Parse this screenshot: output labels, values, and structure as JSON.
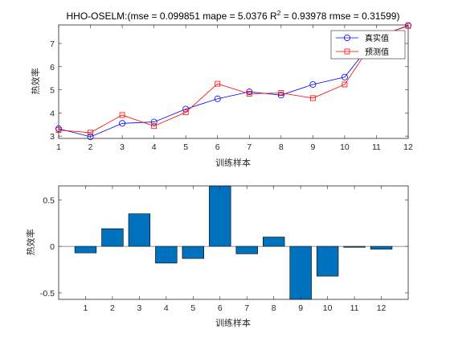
{
  "chart_data": [
    {
      "type": "line",
      "title_main": "HHO-OSELM:(mse = 0.099851 mape = 5.0376  R",
      "title_sup": "2",
      "title_rest": " = 0.93978 rmse = 0.31599)",
      "xlabel": "训练样本",
      "ylabel": "热效率",
      "x": [
        1,
        2,
        3,
        4,
        5,
        6,
        7,
        8,
        9,
        10,
        11,
        12
      ],
      "xlim": [
        1,
        12
      ],
      "ylim": [
        2.9,
        7.8
      ],
      "yticks": [
        3,
        4,
        5,
        6,
        7
      ],
      "grid": false,
      "legend_position": "top-right",
      "series": [
        {
          "name": "真实值",
          "marker": "circle",
          "color": "#0000FF",
          "values": [
            3.32,
            2.97,
            3.55,
            3.61,
            4.17,
            4.61,
            4.91,
            4.77,
            5.23,
            5.55,
            7.27,
            7.78
          ]
        },
        {
          "name": "预测值",
          "marker": "square",
          "color": "#FF0000",
          "values": [
            3.26,
            3.15,
            3.91,
            3.43,
            4.03,
            5.26,
            4.83,
            4.86,
            4.64,
            5.23,
            7.28,
            7.76
          ]
        }
      ]
    },
    {
      "type": "bar",
      "xlabel": "训练样本",
      "ylabel": "热效率",
      "categories": [
        "1",
        "2",
        "3",
        "4",
        "5",
        "6",
        "7",
        "8",
        "9",
        "10",
        "11",
        "12"
      ],
      "values": [
        -0.07,
        0.19,
        0.35,
        -0.18,
        -0.13,
        0.65,
        -0.08,
        0.1,
        -0.59,
        -0.32,
        -0.01,
        -0.03
      ],
      "ylim": [
        -0.57,
        0.65
      ],
      "yticks": [
        -0.5,
        0,
        0.5
      ],
      "bar_color": "#0072BD",
      "grid": false
    }
  ]
}
